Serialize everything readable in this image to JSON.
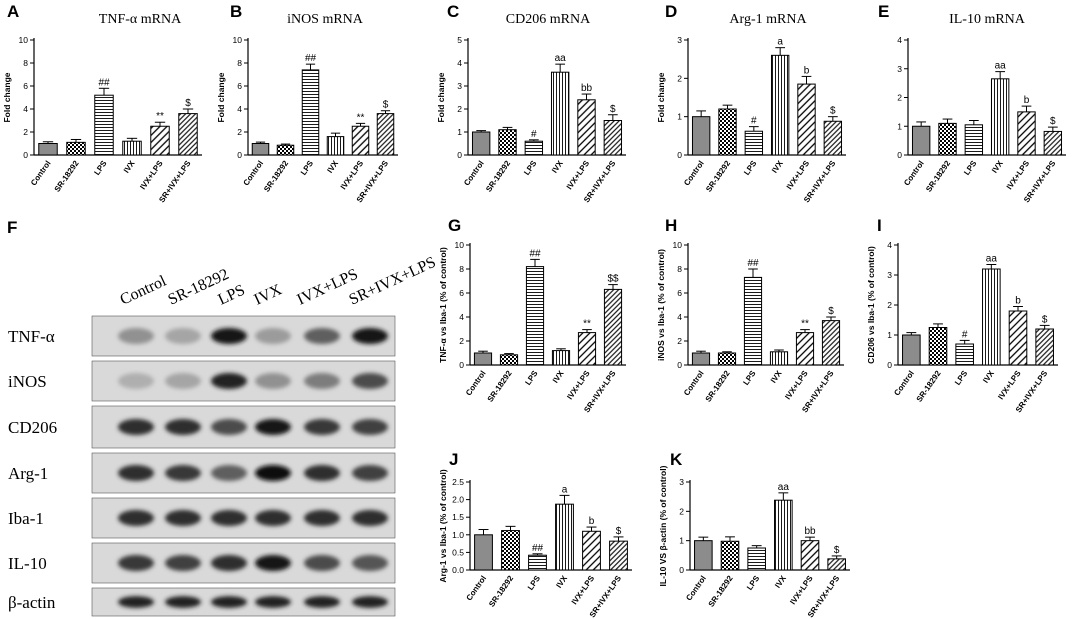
{
  "colors": {
    "ink": "#000000",
    "blot_bg": "#d9d9d9",
    "band": "#1a1a1a",
    "background": "#ffffff"
  },
  "categories": [
    "Control",
    "SR-18292",
    "LPS",
    "IVX",
    "IVX+LPS",
    "SR+IVX+LPS"
  ],
  "bar_patterns": [
    "solid-gray",
    "checkered",
    "horizontal-lines",
    "vertical-lines",
    "diagonal-hatch",
    "dense-diagonal-hatch"
  ],
  "chart_data": [
    {
      "panel": "A",
      "type": "bar",
      "title": "TNF-α mRNA",
      "ylabel": "Fold change",
      "xlabel": "",
      "categories": [
        "Control",
        "SR-18292",
        "LPS",
        "IVX",
        "IVX+LPS",
        "SR+IVX+LPS"
      ],
      "values": [
        1.0,
        1.1,
        5.2,
        1.2,
        2.5,
        3.6
      ],
      "errors": [
        0.15,
        0.25,
        0.6,
        0.25,
        0.35,
        0.4
      ],
      "annotations": [
        "",
        "",
        "##",
        "",
        "**",
        "$"
      ],
      "ylim": [
        0,
        10
      ],
      "yticks": [
        0,
        2,
        4,
        6,
        8,
        10
      ]
    },
    {
      "panel": "B",
      "type": "bar",
      "title": "iNOS mRNA",
      "ylabel": "Fold change",
      "xlabel": "",
      "categories": [
        "Control",
        "SR-18292",
        "LPS",
        "IVX",
        "IVX+LPS",
        "SR+IVX+LPS"
      ],
      "values": [
        1.0,
        0.85,
        7.4,
        1.6,
        2.5,
        3.6
      ],
      "errors": [
        0.12,
        0.1,
        0.5,
        0.3,
        0.25,
        0.25
      ],
      "annotations": [
        "",
        "",
        "##",
        "",
        "**",
        "$"
      ],
      "ylim": [
        0,
        10
      ],
      "yticks": [
        0,
        2,
        4,
        6,
        8,
        10
      ]
    },
    {
      "panel": "C",
      "type": "bar",
      "title": "CD206 mRNA",
      "ylabel": "Fold change",
      "xlabel": "",
      "categories": [
        "Control",
        "SR-18292",
        "LPS",
        "IVX",
        "IVX+LPS",
        "SR+IVX+LPS"
      ],
      "values": [
        1.0,
        1.1,
        0.6,
        3.6,
        2.4,
        1.5
      ],
      "errors": [
        0.06,
        0.1,
        0.06,
        0.35,
        0.25,
        0.25
      ],
      "annotations": [
        "",
        "",
        "#",
        "aa",
        "bb",
        "$"
      ],
      "ylim": [
        0,
        5
      ],
      "yticks": [
        0,
        1,
        2,
        3,
        4,
        5
      ]
    },
    {
      "panel": "D",
      "type": "bar",
      "title": "Arg-1 mRNA",
      "ylabel": "Fold change",
      "xlabel": "",
      "categories": [
        "Control",
        "SR-18292",
        "LPS",
        "IVX",
        "IVX+LPS",
        "SR+IVX+LPS"
      ],
      "values": [
        1.0,
        1.2,
        0.62,
        2.6,
        1.85,
        0.88
      ],
      "errors": [
        0.15,
        0.1,
        0.12,
        0.2,
        0.2,
        0.12
      ],
      "annotations": [
        "",
        "",
        "#",
        "a",
        "b",
        "$"
      ],
      "ylim": [
        0,
        3
      ],
      "yticks": [
        0,
        1,
        2,
        3
      ]
    },
    {
      "panel": "E",
      "type": "bar",
      "title": "IL-10 mRNA",
      "ylabel": "",
      "xlabel": "",
      "categories": [
        "Control",
        "SR-18292",
        "LPS",
        "IVX",
        "IVX+LPS",
        "SR+IVX+LPS"
      ],
      "values": [
        1.0,
        1.1,
        1.05,
        2.65,
        1.5,
        0.82
      ],
      "errors": [
        0.15,
        0.15,
        0.15,
        0.25,
        0.2,
        0.15
      ],
      "annotations": [
        "",
        "",
        "",
        "aa",
        "b",
        "$"
      ],
      "ylim": [
        0,
        4
      ],
      "yticks": [
        0,
        1,
        2,
        3,
        4
      ]
    },
    {
      "panel": "G",
      "type": "bar",
      "title": "",
      "ylabel": "TNF-α vs Iba-1 (% of control)",
      "xlabel": "",
      "categories": [
        "Control",
        "SR-18292",
        "LPS",
        "IVX",
        "IVX+LPS",
        "SR+IVX+LPS"
      ],
      "values": [
        1.0,
        0.85,
        8.2,
        1.2,
        2.7,
        6.3
      ],
      "errors": [
        0.15,
        0.1,
        0.6,
        0.15,
        0.25,
        0.4
      ],
      "annotations": [
        "",
        "",
        "##",
        "",
        "**",
        "$$"
      ],
      "ylim": [
        0,
        10
      ],
      "yticks": [
        0,
        2,
        4,
        6,
        8,
        10
      ]
    },
    {
      "panel": "H",
      "type": "bar",
      "title": "",
      "ylabel": "iNOS vs Iba-1 (% of control)",
      "xlabel": "",
      "categories": [
        "Control",
        "SR-18292",
        "LPS",
        "IVX",
        "IVX+LPS",
        "SR+IVX+LPS"
      ],
      "values": [
        1.0,
        1.0,
        7.3,
        1.1,
        2.7,
        3.7
      ],
      "errors": [
        0.15,
        0.1,
        0.7,
        0.15,
        0.25,
        0.3
      ],
      "annotations": [
        "",
        "",
        "##",
        "",
        "**",
        "$"
      ],
      "ylim": [
        0,
        10
      ],
      "yticks": [
        0,
        2,
        4,
        6,
        8,
        10
      ]
    },
    {
      "panel": "I",
      "type": "bar",
      "title": "",
      "ylabel": "CD206 vs Iba-1 (% of control)",
      "xlabel": "",
      "categories": [
        "Control",
        "SR-18292",
        "LPS",
        "IVX",
        "IVX+LPS",
        "SR+IVX+LPS"
      ],
      "values": [
        1.0,
        1.25,
        0.7,
        3.2,
        1.8,
        1.2
      ],
      "errors": [
        0.08,
        0.12,
        0.12,
        0.15,
        0.15,
        0.12
      ],
      "annotations": [
        "",
        "",
        "#",
        "aa",
        "b",
        "$"
      ],
      "ylim": [
        0,
        4
      ],
      "yticks": [
        0,
        1,
        2,
        3,
        4
      ]
    },
    {
      "panel": "J",
      "type": "bar",
      "title": "",
      "ylabel": "Arg-1 vs Iba-1 (% of control)",
      "xlabel": "",
      "categories": [
        "Control",
        "SR-18292",
        "LPS",
        "IVX",
        "IVX+LPS",
        "SR+IVX+LPS"
      ],
      "values": [
        1.0,
        1.12,
        0.42,
        1.87,
        1.1,
        0.82
      ],
      "errors": [
        0.15,
        0.12,
        0.04,
        0.25,
        0.12,
        0.12
      ],
      "annotations": [
        "",
        "",
        "##",
        "a",
        "b",
        "$"
      ],
      "ylim": [
        0,
        2.5
      ],
      "yticks": [
        0,
        0.5,
        1.0,
        1.5,
        2.0,
        2.5
      ],
      "ytick_labels": [
        "0.0",
        "0.5",
        "1.0",
        "1.5",
        "2.0",
        "2.5"
      ]
    },
    {
      "panel": "K",
      "type": "bar",
      "title": "",
      "ylabel": "IL-10 VS β-actin (% of control)",
      "xlabel": "",
      "categories": [
        "Control",
        "SR-18292",
        "LPS",
        "IVX",
        "IVX+LPS",
        "SR+IVX+LPS"
      ],
      "values": [
        1.0,
        0.98,
        0.75,
        2.38,
        1.0,
        0.38
      ],
      "errors": [
        0.12,
        0.15,
        0.08,
        0.25,
        0.12,
        0.1
      ],
      "annotations": [
        "",
        "",
        "",
        "aa",
        "bb",
        "$"
      ],
      "ylim": [
        0,
        3
      ],
      "yticks": [
        0,
        1,
        2,
        3
      ]
    }
  ],
  "blot": {
    "panel": "F",
    "lane_labels": [
      "Control",
      "SR-18292",
      "LPS",
      "IVX",
      "IVX+LPS",
      "SR+IVX+LPS"
    ],
    "rows": [
      {
        "label": "TNF-α",
        "intensities": [
          0.35,
          0.25,
          0.95,
          0.3,
          0.6,
          0.95
        ]
      },
      {
        "label": "iNOS",
        "intensities": [
          0.2,
          0.25,
          0.9,
          0.35,
          0.45,
          0.7
        ]
      },
      {
        "label": "CD206",
        "intensities": [
          0.85,
          0.85,
          0.7,
          0.95,
          0.8,
          0.75
        ]
      },
      {
        "label": "Arg-1",
        "intensities": [
          0.85,
          0.8,
          0.6,
          1.0,
          0.85,
          0.75
        ]
      },
      {
        "label": "Iba-1",
        "intensities": [
          0.85,
          0.85,
          0.85,
          0.85,
          0.85,
          0.85
        ]
      },
      {
        "label": "IL-10",
        "intensities": [
          0.8,
          0.75,
          0.85,
          0.95,
          0.7,
          0.65
        ]
      },
      {
        "label": "β-actin",
        "intensities": [
          0.9,
          0.9,
          0.9,
          0.9,
          0.9,
          0.9
        ]
      }
    ]
  }
}
